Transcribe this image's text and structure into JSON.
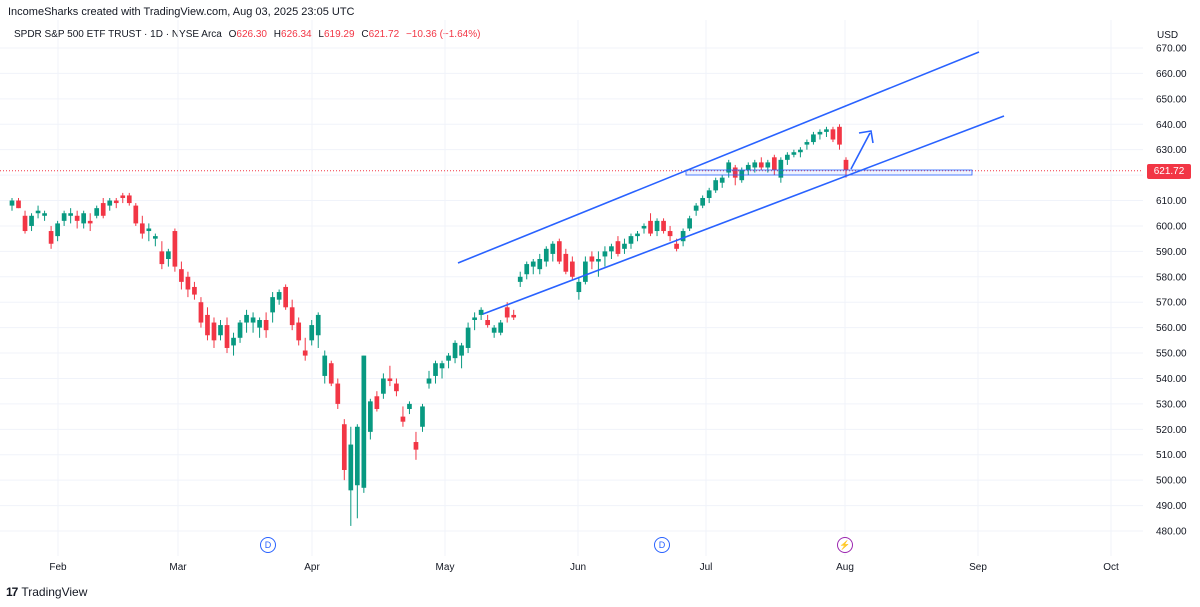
{
  "header": {
    "created_by": "IncomeSharks created with TradingView.com, Aug 03, 2025 23:05 UTC"
  },
  "symbol": {
    "name": "SPDR S&P 500 ETF TRUST · 1D · NYSE Arca",
    "open_key": "O",
    "open": "626.30",
    "high_key": "H",
    "high": "626.34",
    "low_key": "L",
    "low": "619.29",
    "close_key": "C",
    "close": "621.72",
    "change": "−10.36 (−1.64%)"
  },
  "axis": {
    "currency": "USD",
    "last_price": "621.72"
  },
  "markers": {
    "d1": "D",
    "d2": "D",
    "flash": "⚡"
  },
  "logo": {
    "mark": "17",
    "name": "TradingView"
  },
  "colors": {
    "up": "#089981",
    "down": "#f23645",
    "channel": "#2962ff",
    "grid": "#f0f3fa"
  },
  "chart_data": {
    "type": "candlestick",
    "y_ticks": [
      480,
      490,
      500,
      510,
      520,
      530,
      540,
      550,
      560,
      570,
      580,
      590,
      600,
      610,
      620,
      630,
      640,
      650,
      660,
      670
    ],
    "y_tick_labels": [
      "480.00",
      "490.00",
      "500.00",
      "510.00",
      "520.00",
      "530.00",
      "540.00",
      "550.00",
      "560.00",
      "570.00",
      "580.00",
      "590.00",
      "600.00",
      "610.00",
      "620.00",
      "630.00",
      "640.00",
      "650.00",
      "660.00",
      "670.00"
    ],
    "ylim": [
      476,
      674
    ],
    "x_labels": [
      "Feb",
      "Mar",
      "Apr",
      "May",
      "Jun",
      "Jul",
      "Aug",
      "Sep",
      "Oct"
    ],
    "last_price": 621.72,
    "candles": [
      {
        "o": 608,
        "h": 611,
        "l": 606,
        "c": 610
      },
      {
        "o": 610,
        "h": 611,
        "l": 607,
        "c": 607
      },
      {
        "o": 604,
        "h": 606,
        "l": 597,
        "c": 598
      },
      {
        "o": 600,
        "h": 605,
        "l": 598,
        "c": 604
      },
      {
        "o": 605,
        "h": 608,
        "l": 603,
        "c": 606
      },
      {
        "o": 604,
        "h": 606,
        "l": 602,
        "c": 605
      },
      {
        "o": 598,
        "h": 600,
        "l": 591,
        "c": 593
      },
      {
        "o": 596,
        "h": 602,
        "l": 594,
        "c": 601
      },
      {
        "o": 602,
        "h": 606,
        "l": 600,
        "c": 605
      },
      {
        "o": 604,
        "h": 607,
        "l": 601,
        "c": 605
      },
      {
        "o": 604,
        "h": 606,
        "l": 599,
        "c": 602
      },
      {
        "o": 601,
        "h": 606,
        "l": 599,
        "c": 605
      },
      {
        "o": 602,
        "h": 605,
        "l": 598,
        "c": 601
      },
      {
        "o": 604,
        "h": 608,
        "l": 603,
        "c": 607
      },
      {
        "o": 609,
        "h": 611,
        "l": 603,
        "c": 604
      },
      {
        "o": 608,
        "h": 611,
        "l": 606,
        "c": 610
      },
      {
        "o": 610,
        "h": 611,
        "l": 607,
        "c": 609
      },
      {
        "o": 612,
        "h": 613,
        "l": 609,
        "c": 611
      },
      {
        "o": 612,
        "h": 613,
        "l": 608,
        "c": 609
      },
      {
        "o": 608,
        "h": 609,
        "l": 600,
        "c": 601
      },
      {
        "o": 601,
        "h": 604,
        "l": 595,
        "c": 597
      },
      {
        "o": 598,
        "h": 601,
        "l": 594,
        "c": 599
      },
      {
        "o": 595,
        "h": 597,
        "l": 592,
        "c": 596
      },
      {
        "o": 590,
        "h": 594,
        "l": 583,
        "c": 585
      },
      {
        "o": 587,
        "h": 591,
        "l": 584,
        "c": 590
      },
      {
        "o": 598,
        "h": 599,
        "l": 582,
        "c": 584
      },
      {
        "o": 583,
        "h": 586,
        "l": 575,
        "c": 578
      },
      {
        "o": 580,
        "h": 582,
        "l": 572,
        "c": 575
      },
      {
        "o": 576,
        "h": 578,
        "l": 571,
        "c": 573
      },
      {
        "o": 570,
        "h": 572,
        "l": 560,
        "c": 562
      },
      {
        "o": 565,
        "h": 568,
        "l": 555,
        "c": 557
      },
      {
        "o": 562,
        "h": 564,
        "l": 552,
        "c": 555
      },
      {
        "o": 557,
        "h": 563,
        "l": 555,
        "c": 561
      },
      {
        "o": 561,
        "h": 564,
        "l": 550,
        "c": 552
      },
      {
        "o": 553,
        "h": 558,
        "l": 549,
        "c": 556
      },
      {
        "o": 556,
        "h": 563,
        "l": 554,
        "c": 562
      },
      {
        "o": 562,
        "h": 567,
        "l": 558,
        "c": 565
      },
      {
        "o": 562,
        "h": 566,
        "l": 558,
        "c": 564
      },
      {
        "o": 560,
        "h": 564,
        "l": 556,
        "c": 563
      },
      {
        "o": 563,
        "h": 566,
        "l": 556,
        "c": 559
      },
      {
        "o": 566,
        "h": 574,
        "l": 562,
        "c": 572
      },
      {
        "o": 571,
        "h": 575,
        "l": 569,
        "c": 574
      },
      {
        "o": 576,
        "h": 577,
        "l": 567,
        "c": 568
      },
      {
        "o": 568,
        "h": 571,
        "l": 559,
        "c": 561
      },
      {
        "o": 562,
        "h": 564,
        "l": 553,
        "c": 555
      },
      {
        "o": 551,
        "h": 556,
        "l": 547,
        "c": 549
      },
      {
        "o": 555,
        "h": 563,
        "l": 553,
        "c": 561
      },
      {
        "o": 557,
        "h": 566,
        "l": 552,
        "c": 565
      },
      {
        "o": 541,
        "h": 551,
        "l": 538,
        "c": 549
      },
      {
        "o": 546,
        "h": 547,
        "l": 537,
        "c": 538
      },
      {
        "o": 538,
        "h": 540,
        "l": 528,
        "c": 530
      },
      {
        "o": 522,
        "h": 524,
        "l": 500,
        "c": 504
      },
      {
        "o": 496,
        "h": 521,
        "l": 482,
        "c": 514
      },
      {
        "o": 498,
        "h": 522,
        "l": 485,
        "c": 521
      },
      {
        "o": 497,
        "h": 549,
        "l": 495,
        "c": 549
      },
      {
        "o": 519,
        "h": 532,
        "l": 516,
        "c": 531
      },
      {
        "o": 533,
        "h": 535,
        "l": 527,
        "c": 528
      },
      {
        "o": 534,
        "h": 542,
        "l": 532,
        "c": 540
      },
      {
        "o": 540,
        "h": 545,
        "l": 537,
        "c": 539
      },
      {
        "o": 538,
        "h": 540,
        "l": 533,
        "c": 535
      },
      {
        "o": 525,
        "h": 529,
        "l": 521,
        "c": 523
      },
      {
        "o": 528,
        "h": 531,
        "l": 526,
        "c": 530
      },
      {
        "o": 515,
        "h": 519,
        "l": 508,
        "c": 512
      },
      {
        "o": 521,
        "h": 530,
        "l": 519,
        "c": 529
      },
      {
        "o": 538,
        "h": 543,
        "l": 536,
        "c": 540
      },
      {
        "o": 541,
        "h": 547,
        "l": 538,
        "c": 546
      },
      {
        "o": 544,
        "h": 547,
        "l": 540,
        "c": 546
      },
      {
        "o": 547,
        "h": 550,
        "l": 544,
        "c": 549
      },
      {
        "o": 548,
        "h": 555,
        "l": 546,
        "c": 554
      },
      {
        "o": 549,
        "h": 554,
        "l": 544,
        "c": 553
      },
      {
        "o": 552,
        "h": 562,
        "l": 550,
        "c": 560
      },
      {
        "o": 563,
        "h": 566,
        "l": 559,
        "c": 564
      },
      {
        "o": 565,
        "h": 568,
        "l": 563,
        "c": 567
      },
      {
        "o": 563,
        "h": 565,
        "l": 560,
        "c": 561
      },
      {
        "o": 558,
        "h": 561,
        "l": 556,
        "c": 560
      },
      {
        "o": 558,
        "h": 563,
        "l": 557,
        "c": 562
      },
      {
        "o": 568,
        "h": 570,
        "l": 562,
        "c": 564
      },
      {
        "o": 565,
        "h": 567,
        "l": 563,
        "c": 564
      },
      {
        "o": 578,
        "h": 582,
        "l": 576,
        "c": 580
      },
      {
        "o": 581,
        "h": 586,
        "l": 579,
        "c": 585
      },
      {
        "o": 584,
        "h": 587,
        "l": 581,
        "c": 586
      },
      {
        "o": 583,
        "h": 589,
        "l": 581,
        "c": 587
      },
      {
        "o": 586,
        "h": 592,
        "l": 584,
        "c": 591
      },
      {
        "o": 589,
        "h": 594,
        "l": 586,
        "c": 593
      },
      {
        "o": 594,
        "h": 595,
        "l": 585,
        "c": 586
      },
      {
        "o": 589,
        "h": 591,
        "l": 581,
        "c": 582
      },
      {
        "o": 586,
        "h": 588,
        "l": 579,
        "c": 580
      },
      {
        "o": 574,
        "h": 580,
        "l": 571,
        "c": 578
      },
      {
        "o": 578,
        "h": 588,
        "l": 577,
        "c": 586
      },
      {
        "o": 588,
        "h": 590,
        "l": 583,
        "c": 586
      },
      {
        "o": 586,
        "h": 590,
        "l": 580,
        "c": 587
      },
      {
        "o": 588,
        "h": 592,
        "l": 584,
        "c": 590
      },
      {
        "o": 590,
        "h": 593,
        "l": 587,
        "c": 592
      },
      {
        "o": 594,
        "h": 596,
        "l": 588,
        "c": 589
      },
      {
        "o": 591,
        "h": 595,
        "l": 589,
        "c": 593
      },
      {
        "o": 593,
        "h": 597,
        "l": 591,
        "c": 596
      },
      {
        "o": 596,
        "h": 598,
        "l": 594,
        "c": 597
      },
      {
        "o": 599,
        "h": 601,
        "l": 597,
        "c": 600
      },
      {
        "o": 602,
        "h": 605,
        "l": 596,
        "c": 597
      },
      {
        "o": 598,
        "h": 603,
        "l": 596,
        "c": 602
      },
      {
        "o": 602,
        "h": 603,
        "l": 597,
        "c": 598
      },
      {
        "o": 598,
        "h": 600,
        "l": 594,
        "c": 596
      },
      {
        "o": 593,
        "h": 595,
        "l": 590,
        "c": 591
      },
      {
        "o": 594,
        "h": 599,
        "l": 592,
        "c": 598
      },
      {
        "o": 599,
        "h": 604,
        "l": 598,
        "c": 603
      },
      {
        "o": 606,
        "h": 609,
        "l": 604,
        "c": 608
      },
      {
        "o": 608,
        "h": 612,
        "l": 607,
        "c": 611
      },
      {
        "o": 611,
        "h": 615,
        "l": 609,
        "c": 614
      },
      {
        "o": 614,
        "h": 619,
        "l": 613,
        "c": 618
      },
      {
        "o": 617,
        "h": 620,
        "l": 615,
        "c": 619
      },
      {
        "o": 621,
        "h": 626,
        "l": 619,
        "c": 625
      },
      {
        "o": 623,
        "h": 624,
        "l": 616,
        "c": 619
      },
      {
        "o": 618,
        "h": 623,
        "l": 617,
        "c": 622
      },
      {
        "o": 622,
        "h": 625,
        "l": 620,
        "c": 624
      },
      {
        "o": 623,
        "h": 626,
        "l": 621,
        "c": 625
      },
      {
        "o": 625,
        "h": 627,
        "l": 622,
        "c": 623
      },
      {
        "o": 623,
        "h": 626,
        "l": 621,
        "c": 625
      },
      {
        "o": 627,
        "h": 628,
        "l": 620,
        "c": 622
      },
      {
        "o": 619,
        "h": 627,
        "l": 617,
        "c": 626
      },
      {
        "o": 626,
        "h": 629,
        "l": 624,
        "c": 628
      },
      {
        "o": 628,
        "h": 630,
        "l": 627,
        "c": 629
      },
      {
        "o": 629,
        "h": 631,
        "l": 627,
        "c": 630
      },
      {
        "o": 632,
        "h": 634,
        "l": 630,
        "c": 633
      },
      {
        "o": 633,
        "h": 637,
        "l": 632,
        "c": 636
      },
      {
        "o": 636,
        "h": 638,
        "l": 634,
        "c": 637
      },
      {
        "o": 637,
        "h": 639,
        "l": 635,
        "c": 638
      },
      {
        "o": 638,
        "h": 639,
        "l": 633,
        "c": 634
      },
      {
        "o": 639,
        "h": 640,
        "l": 630,
        "c": 632
      },
      {
        "o": 626,
        "h": 627,
        "l": 619,
        "c": 622
      }
    ]
  }
}
